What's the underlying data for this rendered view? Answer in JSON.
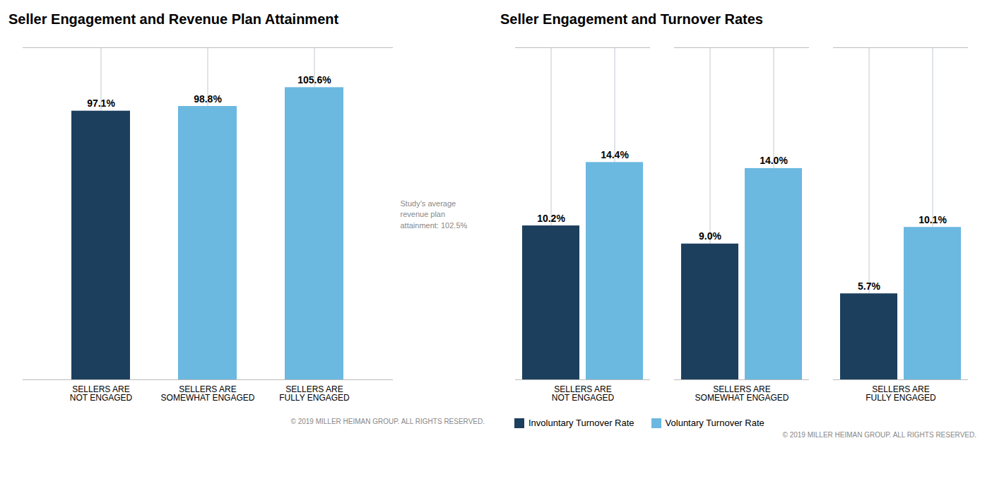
{
  "chart_data": [
    {
      "type": "bar",
      "title": "Seller Engagement and Revenue Plan Attainment",
      "categories": [
        "SELLERS ARE\nNOT ENGAGED",
        "SELLERS ARE\nSOMEWHAT ENGAGED",
        "SELLERS ARE\nFULLY ENGAGED"
      ],
      "values": [
        97.1,
        98.8,
        105.6
      ],
      "value_labels": [
        "97.1%",
        "98.8%",
        "105.6%"
      ],
      "colors": [
        "#1d3f5e",
        "#6bb8e0",
        "#6bb8e0"
      ],
      "ylim": [
        0,
        120
      ],
      "grid": false,
      "data_labels": true,
      "tick_labels": "x",
      "annotation": "Study’s average\nrevenue plan\nattainment: 102.5%",
      "caption": "© 2019 MILLER HEIMAN GROUP. ALL RIGHTS RESERVED."
    },
    {
      "type": "bar",
      "title": "Seller Engagement and Turnover Rates",
      "categories": [
        "SELLERS ARE\nNOT ENGAGED",
        "SELLERS ARE\nSOMEWHAT ENGAGED",
        "SELLERS ARE\nFULLY ENGAGED"
      ],
      "series": [
        {
          "name": "Involuntary Turnover Rate",
          "color": "#1d3f5e",
          "values": [
            10.2,
            9.0,
            5.7
          ],
          "value_labels": [
            "10.2%",
            "9.0%",
            "5.7%"
          ]
        },
        {
          "name": "Voluntary Turnover Rate",
          "color": "#6bb8e0",
          "values": [
            14.4,
            14.0,
            10.1
          ],
          "value_labels": [
            "14.4%",
            "14.0%",
            "10.1%"
          ]
        }
      ],
      "ylim": [
        0,
        22
      ],
      "grid": false,
      "data_labels": true,
      "tick_labels": "x",
      "legend": "bottom",
      "caption": "© 2019 MILLER HEIMAN GROUP. ALL RIGHTS RESERVED."
    }
  ]
}
